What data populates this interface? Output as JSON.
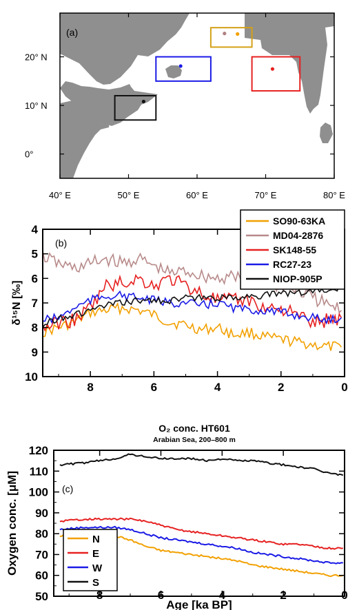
{
  "chart_data": [
    {
      "type": "map",
      "panel_label": "(a)",
      "xlim": [
        40,
        80
      ],
      "ylim": [
        -5,
        29
      ],
      "x_ticks": [
        40,
        50,
        60,
        70,
        80
      ],
      "x_tick_labels": [
        "40° E",
        "50° E",
        "60° E",
        "70° E",
        "80° E"
      ],
      "y_ticks": [
        0,
        10,
        20
      ],
      "y_tick_labels": [
        "0°",
        "10° N",
        "20° N"
      ],
      "land_color": "#8f8f8f",
      "regions": [
        {
          "color": "#d4a017",
          "lon": [
            62,
            68
          ],
          "lat": [
            22,
            26
          ]
        },
        {
          "color": "#1a1ae6",
          "lon": [
            54,
            62
          ],
          "lat": [
            15,
            20
          ]
        },
        {
          "color": "#e62020",
          "lon": [
            68,
            75
          ],
          "lat": [
            13,
            20
          ]
        },
        {
          "color": "#111111",
          "lon": [
            48,
            54
          ],
          "lat": [
            7,
            12
          ]
        }
      ],
      "sites": [
        {
          "color": "#f2a000",
          "lon": 65.9,
          "lat": 24.7
        },
        {
          "color": "#b08080",
          "lon": 64.0,
          "lat": 24.8
        },
        {
          "color": "#1a1ae6",
          "lon": 57.6,
          "lat": 18.1
        },
        {
          "color": "#e62020",
          "lon": 71.0,
          "lat": 17.5
        },
        {
          "color": "#111111",
          "lon": 52.2,
          "lat": 10.8
        }
      ]
    },
    {
      "type": "line",
      "panel_label": "(b)",
      "ylabel": "δ¹⁵N [‰]",
      "xlim": [
        9.5,
        0
      ],
      "ylim": [
        10,
        4
      ],
      "x_ticks": [
        "8",
        "6",
        "4",
        "2",
        "0"
      ],
      "y_ticks": [
        "4",
        "5",
        "6",
        "7",
        "8",
        "9",
        "10"
      ],
      "series": [
        {
          "name": "SO90-63KA",
          "color": "#f2a000",
          "anchors": [
            [
              9.5,
              8.2
            ],
            [
              9.0,
              8.0
            ],
            [
              8.5,
              7.8
            ],
            [
              8.0,
              7.4
            ],
            [
              7.5,
              7.3
            ],
            [
              7.0,
              7.2
            ],
            [
              6.5,
              7.3
            ],
            [
              6.0,
              7.5
            ],
            [
              5.5,
              7.8
            ],
            [
              5.0,
              7.9
            ],
            [
              4.5,
              8.1
            ],
            [
              4.0,
              8.0
            ],
            [
              3.5,
              8.3
            ],
            [
              3.0,
              8.2
            ],
            [
              2.5,
              8.4
            ],
            [
              2.0,
              8.5
            ],
            [
              1.5,
              8.6
            ],
            [
              1.0,
              8.7
            ],
            [
              0.5,
              8.8
            ],
            [
              0.1,
              8.8
            ]
          ]
        },
        {
          "name": "MD04-2876",
          "color": "#b88a8a",
          "anchors": [
            [
              9.5,
              5.1
            ],
            [
              9.0,
              5.4
            ],
            [
              8.5,
              5.6
            ],
            [
              8.0,
              5.4
            ],
            [
              7.5,
              5.2
            ],
            [
              7.0,
              5.4
            ],
            [
              6.5,
              5.2
            ],
            [
              6.0,
              5.5
            ],
            [
              5.5,
              5.8
            ],
            [
              5.0,
              5.7
            ],
            [
              4.5,
              5.9
            ],
            [
              4.0,
              6.0
            ],
            [
              3.5,
              5.9
            ],
            [
              3.0,
              6.0
            ],
            [
              2.5,
              6.2
            ],
            [
              2.0,
              6.3
            ],
            [
              1.5,
              6.5
            ],
            [
              1.0,
              6.8
            ],
            [
              0.5,
              7.1
            ],
            [
              0.1,
              7.3
            ]
          ]
        },
        {
          "name": "SK148-55",
          "color": "#e62020",
          "anchors": [
            [
              9.5,
              8.0
            ],
            [
              9.0,
              7.8
            ],
            [
              8.5,
              7.7
            ],
            [
              8.0,
              7.2
            ],
            [
              7.5,
              6.3
            ],
            [
              7.0,
              6.2
            ],
            [
              6.5,
              6.0
            ],
            [
              6.0,
              6.3
            ],
            [
              5.5,
              6.0
            ],
            [
              5.0,
              6.3
            ],
            [
              4.5,
              6.6
            ],
            [
              4.0,
              6.9
            ],
            [
              3.5,
              6.9
            ],
            [
              3.0,
              6.9
            ],
            [
              2.5,
              7.2
            ],
            [
              2.0,
              7.2
            ],
            [
              1.5,
              7.5
            ],
            [
              1.0,
              7.8
            ],
            [
              0.5,
              7.7
            ],
            [
              0.1,
              7.6
            ]
          ]
        },
        {
          "name": "RC27-23",
          "color": "#1a1ae6",
          "anchors": [
            [
              9.5,
              7.7
            ],
            [
              9.0,
              7.6
            ],
            [
              8.5,
              7.2
            ],
            [
              8.0,
              6.9
            ],
            [
              7.5,
              6.7
            ],
            [
              7.0,
              6.7
            ],
            [
              6.5,
              6.8
            ],
            [
              6.0,
              6.9
            ],
            [
              5.5,
              7.0
            ],
            [
              5.0,
              7.0
            ],
            [
              4.5,
              7.1
            ],
            [
              4.0,
              7.0
            ],
            [
              3.5,
              7.2
            ],
            [
              3.0,
              7.3
            ],
            [
              2.5,
              7.3
            ],
            [
              2.0,
              7.4
            ],
            [
              1.5,
              7.5
            ],
            [
              1.0,
              7.6
            ],
            [
              0.5,
              7.7
            ],
            [
              0.1,
              7.6
            ]
          ]
        },
        {
          "name": "NIOP-905P",
          "color": "#111111",
          "anchors": [
            [
              9.5,
              7.9
            ],
            [
              9.0,
              7.6
            ],
            [
              8.5,
              7.5
            ],
            [
              8.0,
              7.3
            ],
            [
              7.5,
              7.1
            ],
            [
              7.0,
              7.0
            ],
            [
              6.5,
              6.9
            ],
            [
              6.0,
              6.9
            ],
            [
              5.5,
              6.9
            ],
            [
              5.0,
              6.8
            ],
            [
              4.5,
              6.8
            ],
            [
              4.0,
              6.8
            ],
            [
              3.5,
              6.8
            ],
            [
              3.0,
              6.7
            ],
            [
              2.5,
              6.7
            ],
            [
              2.0,
              6.6
            ],
            [
              1.5,
              6.6
            ],
            [
              1.0,
              6.5
            ],
            [
              0.5,
              6.5
            ],
            [
              0.1,
              6.4
            ]
          ]
        }
      ]
    },
    {
      "type": "line",
      "panel_label": "(c)",
      "title": "O₂ conc. HT601",
      "subtitle": "Arabian Sea, 200–800 m",
      "xlabel": "Age [ka BP]",
      "ylabel": "Oxygen conc. [μM]",
      "xlim": [
        9.5,
        0
      ],
      "ylim": [
        50,
        120
      ],
      "x_ticks": [
        "8",
        "6",
        "4",
        "2",
        "0"
      ],
      "y_ticks": [
        "50",
        "60",
        "70",
        "80",
        "90",
        "100",
        "110",
        "120"
      ],
      "series": [
        {
          "name": "N",
          "color": "#f2a000",
          "anchors": [
            [
              9.3,
              79
            ],
            [
              8.5,
              80
            ],
            [
              7.5,
              79
            ],
            [
              7.0,
              77
            ],
            [
              6.5,
              74
            ],
            [
              6.0,
              72
            ],
            [
              5.5,
              71
            ],
            [
              5.0,
              70
            ],
            [
              4.5,
              69
            ],
            [
              4.0,
              68
            ],
            [
              3.5,
              67
            ],
            [
              3.0,
              65
            ],
            [
              2.5,
              64
            ],
            [
              2.0,
              63
            ],
            [
              1.5,
              62
            ],
            [
              1.0,
              61
            ],
            [
              0.5,
              60
            ],
            [
              0.05,
              60
            ]
          ]
        },
        {
          "name": "E",
          "color": "#e62020",
          "anchors": [
            [
              9.3,
              86
            ],
            [
              8.5,
              87
            ],
            [
              7.5,
              87
            ],
            [
              7.0,
              87
            ],
            [
              6.5,
              86
            ],
            [
              6.0,
              84
            ],
            [
              5.5,
              82
            ],
            [
              5.0,
              81
            ],
            [
              4.5,
              80
            ],
            [
              4.0,
              79
            ],
            [
              3.5,
              78
            ],
            [
              3.0,
              77
            ],
            [
              2.5,
              76
            ],
            [
              2.0,
              75
            ],
            [
              1.5,
              75
            ],
            [
              1.0,
              74
            ],
            [
              0.5,
              73
            ],
            [
              0.05,
              73
            ]
          ]
        },
        {
          "name": "W",
          "color": "#1a1ae6",
          "anchors": [
            [
              9.3,
              82
            ],
            [
              8.5,
              83
            ],
            [
              7.5,
              83
            ],
            [
              7.0,
              82
            ],
            [
              6.5,
              80
            ],
            [
              6.0,
              78
            ],
            [
              5.5,
              77
            ],
            [
              5.0,
              76
            ],
            [
              4.5,
              75
            ],
            [
              4.0,
              74
            ],
            [
              3.5,
              73
            ],
            [
              3.0,
              71
            ],
            [
              2.5,
              70
            ],
            [
              2.0,
              69
            ],
            [
              1.5,
              68
            ],
            [
              1.0,
              67
            ],
            [
              0.5,
              66
            ],
            [
              0.05,
              66
            ]
          ]
        },
        {
          "name": "S",
          "color": "#111111",
          "anchors": [
            [
              9.3,
              113
            ],
            [
              8.5,
              114
            ],
            [
              7.5,
              116
            ],
            [
              7.0,
              118
            ],
            [
              6.5,
              117
            ],
            [
              6.0,
              116
            ],
            [
              5.5,
              116
            ],
            [
              5.0,
              116
            ],
            [
              4.5,
              115
            ],
            [
              4.0,
              116
            ],
            [
              3.5,
              115
            ],
            [
              3.0,
              115
            ],
            [
              2.5,
              114
            ],
            [
              2.0,
              113
            ],
            [
              1.5,
              112
            ],
            [
              1.0,
              111
            ],
            [
              0.5,
              109
            ],
            [
              0.05,
              108
            ]
          ]
        }
      ]
    }
  ]
}
